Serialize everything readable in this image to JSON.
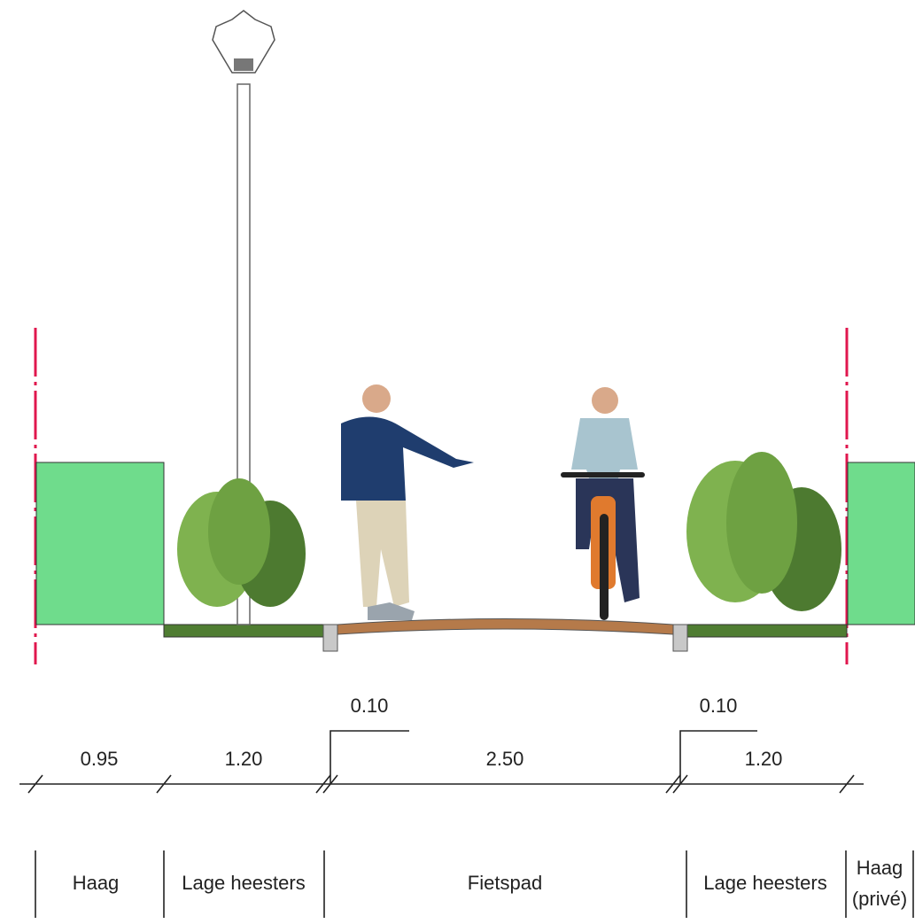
{
  "dimensions": [
    "0.95",
    "1.20",
    "2.50",
    "1.20"
  ],
  "curb_widths": [
    "0.10",
    "0.10"
  ],
  "zones": [
    "Haag",
    "Lage heesters",
    "Fietspad",
    "Lage heesters",
    [
      "Haag",
      "(privé)"
    ]
  ]
}
